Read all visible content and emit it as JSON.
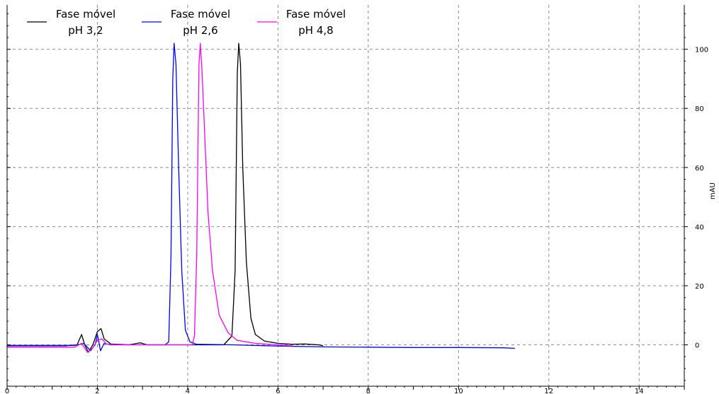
{
  "chart_data": {
    "type": "line",
    "xlabel": "",
    "ylabel": "mAU",
    "xlim": [
      0,
      15
    ],
    "ylim": [
      -14,
      115
    ],
    "grid": true,
    "legend_position": "top-left",
    "x_ticks": [
      0,
      2,
      4,
      6,
      8,
      10,
      12,
      14
    ],
    "x_tick_labels": [
      "0",
      "2",
      "4",
      "6",
      "8",
      "10",
      "12",
      "14"
    ],
    "y_ticks": [
      0,
      20,
      40,
      60,
      80,
      100
    ],
    "y_tick_labels": [
      "0",
      "20",
      "40",
      "60",
      "80",
      "100"
    ],
    "series": [
      {
        "name": "Fase móvel pH 3,2",
        "legend_line1": "Fase móvel",
        "legend_line2": "pH 3,2",
        "color": "#000000",
        "points": [
          [
            0,
            -0.3
          ],
          [
            1.3,
            -0.3
          ],
          [
            1.55,
            0
          ],
          [
            1.65,
            3.5
          ],
          [
            1.72,
            0
          ],
          [
            1.8,
            -2.5
          ],
          [
            1.9,
            0
          ],
          [
            2.0,
            4.5
          ],
          [
            2.08,
            5.5
          ],
          [
            2.15,
            2
          ],
          [
            2.3,
            0.3
          ],
          [
            2.7,
            0
          ],
          [
            2.95,
            0.7
          ],
          [
            3.1,
            0
          ],
          [
            4.5,
            0
          ],
          [
            4.8,
            0
          ],
          [
            4.98,
            3
          ],
          [
            5.05,
            25
          ],
          [
            5.1,
            92
          ],
          [
            5.13,
            102
          ],
          [
            5.17,
            95
          ],
          [
            5.22,
            60
          ],
          [
            5.3,
            28
          ],
          [
            5.4,
            9
          ],
          [
            5.5,
            3.5
          ],
          [
            5.7,
            1.3
          ],
          [
            6.0,
            0.5
          ],
          [
            6.3,
            0.2
          ],
          [
            6.6,
            0.3
          ],
          [
            6.9,
            0
          ],
          [
            7.0,
            -0.3
          ]
        ]
      },
      {
        "name": "Fase móvel pH 2,6",
        "legend_line1": "Fase móvel",
        "legend_line2": "pH 2,6",
        "color": "#0000ff",
        "points": [
          [
            0,
            -0.2
          ],
          [
            1.5,
            -0.2
          ],
          [
            1.7,
            0.5
          ],
          [
            1.85,
            -2
          ],
          [
            1.95,
            0
          ],
          [
            2.0,
            3.5
          ],
          [
            2.07,
            -2
          ],
          [
            2.15,
            0.5
          ],
          [
            2.3,
            0
          ],
          [
            3.5,
            0
          ],
          [
            3.58,
            1
          ],
          [
            3.63,
            30
          ],
          [
            3.67,
            90
          ],
          [
            3.7,
            102
          ],
          [
            3.74,
            95
          ],
          [
            3.8,
            60
          ],
          [
            3.87,
            25
          ],
          [
            3.95,
            5
          ],
          [
            4.05,
            1
          ],
          [
            4.2,
            0.2
          ],
          [
            5,
            0
          ],
          [
            6,
            -0.4
          ],
          [
            7,
            -0.7
          ],
          [
            8,
            -0.8
          ],
          [
            9,
            -0.9
          ],
          [
            10,
            -0.9
          ],
          [
            11,
            -1.0
          ],
          [
            11.25,
            -1.2
          ]
        ]
      },
      {
        "name": "Fase móvel pH 4,8",
        "legend_line1": "Fase móvel",
        "legend_line2": "pH 4,8",
        "color": "#ff00ff",
        "points": [
          [
            0,
            -0.8
          ],
          [
            1.5,
            -0.8
          ],
          [
            1.65,
            0.5
          ],
          [
            1.78,
            -2.5
          ],
          [
            1.9,
            -1
          ],
          [
            2.0,
            1.5
          ],
          [
            2.1,
            2
          ],
          [
            2.2,
            0.3
          ],
          [
            2.5,
            0
          ],
          [
            4.1,
            0
          ],
          [
            4.15,
            3
          ],
          [
            4.2,
            30
          ],
          [
            4.25,
            95
          ],
          [
            4.28,
            102
          ],
          [
            4.32,
            92
          ],
          [
            4.38,
            70
          ],
          [
            4.45,
            45
          ],
          [
            4.55,
            25
          ],
          [
            4.7,
            10
          ],
          [
            4.9,
            4
          ],
          [
            5.1,
            1.5
          ],
          [
            5.5,
            0.5
          ],
          [
            6.0,
            0
          ],
          [
            6.3,
            -0.3
          ]
        ]
      }
    ]
  }
}
